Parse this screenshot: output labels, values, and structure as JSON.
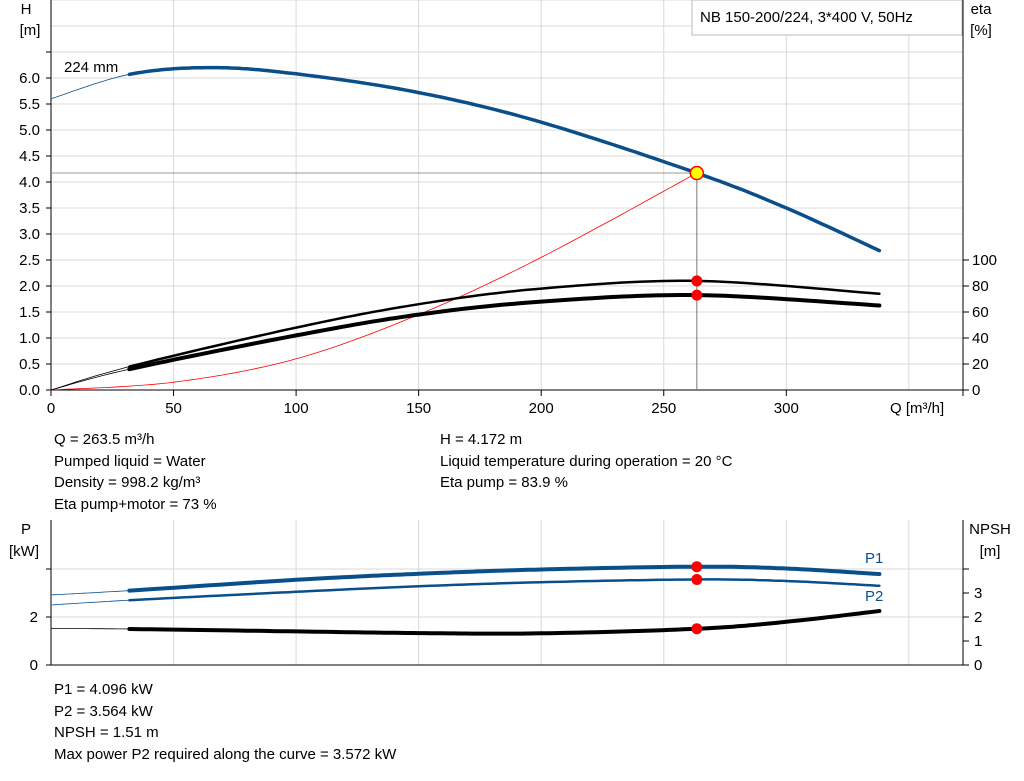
{
  "chart_data": [
    {
      "type": "line",
      "title": "NB 150-200/224, 3*400 V, 50Hz",
      "xlabel": "Q [m³/h]",
      "ylabel_left": [
        "H",
        "[m]"
      ],
      "ylabel_right": [
        "eta",
        "[%]"
      ],
      "xlim": [
        0,
        372
      ],
      "ylim_left": [
        0,
        7.5
      ],
      "ylim_right_eta": [
        0,
        100
      ],
      "x_ticks": [
        0,
        50,
        100,
        150,
        200,
        250,
        300
      ],
      "y_ticks_left": [
        "0.0",
        "0.5",
        "1.0",
        "1.5",
        "2.0",
        "2.5",
        "3.0",
        "3.5",
        "4.0",
        "4.5",
        "5.0",
        "5.5",
        "6.0"
      ],
      "y_ticks_right": [
        0,
        20,
        40,
        60,
        80,
        100
      ],
      "grid": true,
      "curve_label": "224 mm",
      "series": [
        {
          "key": "H",
          "axis": "left",
          "color": "#0a4f8a",
          "x": [
            0,
            32,
            65,
            100,
            150,
            200,
            263.5,
            300,
            338
          ],
          "y": [
            5.6,
            6.07,
            6.2,
            6.08,
            5.72,
            5.15,
            4.172,
            3.5,
            2.68
          ]
        },
        {
          "key": "eta_pump",
          "axis": "right",
          "color": "#000000",
          "x": [
            0,
            32,
            100,
            150,
            200,
            263.5,
            338
          ],
          "y": [
            0,
            18,
            48,
            66,
            78,
            83.9,
            74
          ]
        },
        {
          "key": "eta_pump_motor",
          "axis": "right",
          "color": "#000000",
          "x": [
            0,
            32,
            100,
            150,
            200,
            263.5,
            338
          ],
          "y": [
            0,
            16,
            42,
            58,
            68,
            73,
            65
          ]
        },
        {
          "key": "system",
          "axis": "left",
          "color": "#ff0000",
          "x": [
            0,
            50,
            100,
            150,
            200,
            263.5
          ],
          "y": [
            0,
            0.15,
            0.6,
            1.45,
            2.55,
            4.172
          ]
        }
      ],
      "operating_point": {
        "Q": 263.5,
        "H": 4.172,
        "eta_pump": 83.9,
        "eta_pump_motor": 73
      }
    },
    {
      "type": "line",
      "ylabel_left": [
        "P",
        "[kW]"
      ],
      "ylabel_right": [
        "NPSH",
        "[m]"
      ],
      "xlim": [
        0,
        372
      ],
      "ylim_left": [
        0,
        6
      ],
      "ylim_right": [
        0,
        6
      ],
      "y_ticks_left": [
        0,
        2
      ],
      "y_ticks_right": [
        0,
        1,
        2,
        3
      ],
      "grid": true,
      "series": [
        {
          "key": "P1",
          "name": "P1",
          "color": "#0a4f8a",
          "x": [
            0,
            32,
            100,
            150,
            200,
            263.5,
            300,
            338
          ],
          "y": [
            2.92,
            3.1,
            3.55,
            3.8,
            3.98,
            4.096,
            4.02,
            3.79
          ]
        },
        {
          "key": "P2",
          "name": "P2",
          "color": "#0a4f8a",
          "x": [
            0,
            32,
            100,
            150,
            200,
            263.5,
            300,
            338
          ],
          "y": [
            2.5,
            2.7,
            3.05,
            3.28,
            3.45,
            3.564,
            3.5,
            3.3
          ]
        },
        {
          "key": "NPSH",
          "color": "#000000",
          "x": [
            0,
            32,
            100,
            150,
            200,
            263.5,
            300,
            338
          ],
          "y": [
            1.52,
            1.5,
            1.4,
            1.33,
            1.32,
            1.51,
            1.8,
            2.25
          ]
        }
      ],
      "operating_point": {
        "P1": 4.096,
        "P2": 3.564,
        "NPSH": 1.51
      }
    }
  ],
  "info_top": {
    "left": [
      "Q = 263.5 m³/h",
      "Pumped liquid = Water",
      "Density = 998.2 kg/m³",
      "Eta pump+motor = 73 %"
    ],
    "right": [
      "H = 4.172 m",
      "Liquid temperature during operation = 20 °C",
      "Eta pump = 83.9 %"
    ]
  },
  "info_bottom": [
    "P1 = 4.096 kW",
    "P2 = 3.564 kW",
    "NPSH = 1.51 m",
    "Max power P2 required along the curve = 3.572 kW"
  ]
}
